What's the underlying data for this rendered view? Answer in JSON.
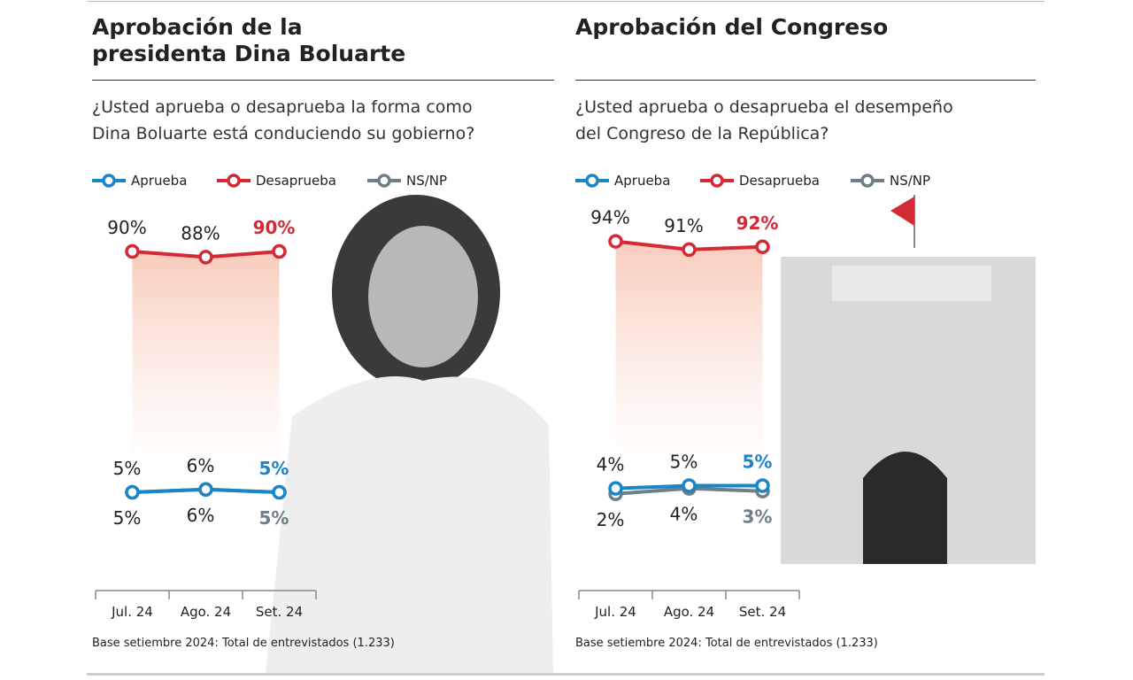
{
  "chart_data": [
    {
      "type": "line",
      "title": "Aprobación de la presidenta Dina Boluarte",
      "subtitle": "¿Usted aprueba o desaprueba la forma como Dina Boluarte está conduciendo su gobierno?",
      "categories": [
        "Jul. 24",
        "Ago. 24",
        "Set. 24"
      ],
      "ylim": [
        0,
        100
      ],
      "series": [
        {
          "name": "Aprueba",
          "color": "#1a86c7",
          "values": [
            5,
            6,
            5
          ],
          "value_labels": [
            "5%",
            "6%",
            "5%"
          ]
        },
        {
          "name": "Desaprueba",
          "color": "#d42a35",
          "values": [
            90,
            88,
            90
          ],
          "value_labels": [
            "90%",
            "88%",
            "90%"
          ]
        },
        {
          "name": "NS/NP",
          "color": "#6e7f86",
          "values": [
            5,
            6,
            5
          ],
          "value_labels": [
            "5%",
            "6%",
            "5%"
          ]
        }
      ],
      "note": "Base setiembre 2024: Total de entrevistados (1.233)"
    },
    {
      "type": "line",
      "title": "Aprobación del Congreso",
      "subtitle": "¿Usted aprueba o desaprueba el desempeño del Congreso de la República?",
      "categories": [
        "Jul. 24",
        "Ago. 24",
        "Set. 24"
      ],
      "ylim": [
        0,
        100
      ],
      "series": [
        {
          "name": "Aprueba",
          "color": "#1a86c7",
          "values": [
            4,
            5,
            5
          ],
          "value_labels": [
            "4%",
            "5%",
            "5%"
          ]
        },
        {
          "name": "Desaprueba",
          "color": "#d42a35",
          "values": [
            94,
            91,
            92
          ],
          "value_labels": [
            "94%",
            "91%",
            "92%"
          ]
        },
        {
          "name": "NS/NP",
          "color": "#6e7f86",
          "values": [
            2,
            4,
            3
          ],
          "value_labels": [
            "2%",
            "4%",
            "3%"
          ]
        }
      ],
      "note": "Base setiembre 2024: Total de entrevistados (1.233)"
    }
  ]
}
